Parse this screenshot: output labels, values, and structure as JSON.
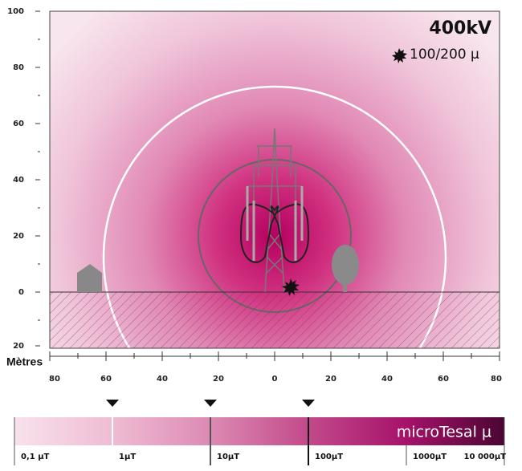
{
  "header": {
    "title": "400kV",
    "legend": "100/200 µ"
  },
  "axes": {
    "x_title": "Mètres",
    "y_labels": [
      "100",
      "80",
      "60",
      "40",
      "20",
      "0",
      "20"
    ],
    "x_labels": [
      "80",
      "60",
      "40",
      "20",
      "0",
      "20",
      "40",
      "60",
      "80"
    ]
  },
  "scale": {
    "title": "microTesal µ",
    "labels": [
      "0,1 µT",
      "1µT",
      "10µT",
      "100µT",
      "1000µT",
      "10 000µT"
    ]
  }
}
